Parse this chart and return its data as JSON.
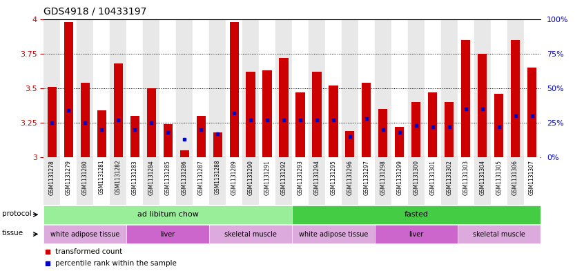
{
  "title": "GDS4918 / 10433197",
  "samples": [
    "GSM1131278",
    "GSM1131279",
    "GSM1131280",
    "GSM1131281",
    "GSM1131282",
    "GSM1131283",
    "GSM1131284",
    "GSM1131285",
    "GSM1131286",
    "GSM1131287",
    "GSM1131288",
    "GSM1131289",
    "GSM1131290",
    "GSM1131291",
    "GSM1131292",
    "GSM1131293",
    "GSM1131294",
    "GSM1131295",
    "GSM1131296",
    "GSM1131297",
    "GSM1131298",
    "GSM1131299",
    "GSM1131300",
    "GSM1131301",
    "GSM1131302",
    "GSM1131303",
    "GSM1131304",
    "GSM1131305",
    "GSM1131306",
    "GSM1131307"
  ],
  "bar_heights": [
    3.51,
    3.98,
    3.54,
    3.34,
    3.68,
    3.3,
    3.5,
    3.24,
    3.05,
    3.3,
    3.18,
    3.98,
    3.62,
    3.63,
    3.72,
    3.47,
    3.62,
    3.52,
    3.19,
    3.54,
    3.35,
    3.22,
    3.4,
    3.47,
    3.4,
    3.85,
    3.75,
    3.46,
    3.85,
    3.65
  ],
  "blue_dot_y": [
    3.25,
    3.34,
    3.25,
    3.2,
    3.27,
    3.2,
    3.25,
    3.18,
    3.13,
    3.2,
    3.17,
    3.32,
    3.27,
    3.27,
    3.27,
    3.27,
    3.27,
    3.27,
    3.15,
    3.28,
    3.2,
    3.18,
    3.23,
    3.22,
    3.22,
    3.35,
    3.35,
    3.22,
    3.3,
    3.3
  ],
  "ylim": [
    3.0,
    4.0
  ],
  "yticks": [
    3.0,
    3.25,
    3.5,
    3.75,
    4.0
  ],
  "ytick_labels": [
    "3",
    "3.25",
    "3.5",
    "3.75",
    "4"
  ],
  "right_yticks_pct": [
    0,
    25,
    50,
    75,
    100
  ],
  "right_ytick_labels": [
    "0%",
    "25%",
    "50%",
    "75%",
    "100%"
  ],
  "bar_color": "#cc0000",
  "dot_color": "#0000cc",
  "bar_width": 0.55,
  "col_bg_even": "#e8e8e8",
  "col_bg_odd": "#ffffff",
  "protocol_groups": [
    {
      "label": "ad libitum chow",
      "start": 0,
      "end": 14,
      "color": "#99ee99"
    },
    {
      "label": "fasted",
      "start": 15,
      "end": 29,
      "color": "#44cc44"
    }
  ],
  "tissue_groups": [
    {
      "label": "white adipose tissue",
      "start": 0,
      "end": 4,
      "color": "#ddaadd"
    },
    {
      "label": "liver",
      "start": 5,
      "end": 9,
      "color": "#cc66cc"
    },
    {
      "label": "skeletal muscle",
      "start": 10,
      "end": 14,
      "color": "#ddaadd"
    },
    {
      "label": "white adipose tissue",
      "start": 15,
      "end": 19,
      "color": "#ddaadd"
    },
    {
      "label": "liver",
      "start": 20,
      "end": 24,
      "color": "#cc66cc"
    },
    {
      "label": "skeletal muscle",
      "start": 25,
      "end": 29,
      "color": "#ddaadd"
    }
  ],
  "legend_items": [
    {
      "label": "transformed count",
      "color": "#cc0000"
    },
    {
      "label": "percentile rank within the sample",
      "color": "#0000cc"
    }
  ],
  "title_fontsize": 10,
  "axis_label_color_left": "#cc0000",
  "axis_label_color_right": "#0000cc"
}
